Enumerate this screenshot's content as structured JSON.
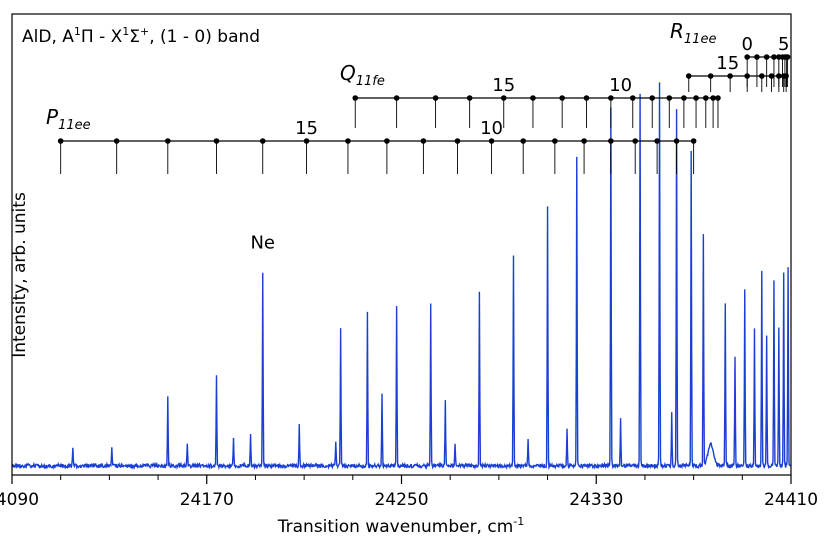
{
  "chart_data": {
    "type": "line",
    "title_parts": {
      "molecule": "AlD, A",
      "sup1": "1",
      "upper": "Π - X",
      "sup2": "1",
      "lower": "Σ",
      "sup3": "+",
      "band": ", (1 - 0) band"
    },
    "xlabel": "Transition wavenumber, cm",
    "xlabel_sup": "-1",
    "ylabel": "Intensity, arb. units",
    "xlim": [
      24090,
      24410
    ],
    "ylim": [
      0,
      1
    ],
    "x_ticks": [
      24090,
      24170,
      24250,
      24330,
      24410
    ],
    "x_tick_labels": [
      "24090",
      "24170",
      "24250",
      "24330",
      "24410"
    ],
    "x_minor_step": 20,
    "grid": false,
    "series": [
      {
        "color": "#1a3fd1",
        "baseline": 0.02,
        "peaks": [
          {
            "x": 24115,
            "h": 0.04
          },
          {
            "x": 24131,
            "h": 0.04
          },
          {
            "x": 24154,
            "h": 0.15
          },
          {
            "x": 24174,
            "h": 0.2
          },
          {
            "x": 24181,
            "h": 0.06
          },
          {
            "x": 24193,
            "h": 0.42
          },
          {
            "x": 24208,
            "h": 0.09
          },
          {
            "x": 24225,
            "h": 0.3
          },
          {
            "x": 24236,
            "h": 0.33
          },
          {
            "x": 24242,
            "h": 0.16
          },
          {
            "x": 24248,
            "h": 0.35
          },
          {
            "x": 24262,
            "h": 0.35
          },
          {
            "x": 24268,
            "h": 0.14
          },
          {
            "x": 24282,
            "h": 0.38
          },
          {
            "x": 24296,
            "h": 0.46
          },
          {
            "x": 24310,
            "h": 0.56
          },
          {
            "x": 24322,
            "h": 0.67
          },
          {
            "x": 24336,
            "h": 0.78
          },
          {
            "x": 24348,
            "h": 0.81
          },
          {
            "x": 24356,
            "h": 0.83
          },
          {
            "x": 24363,
            "h": 0.77
          },
          {
            "x": 24369,
            "h": 0.68
          },
          {
            "x": 24374,
            "h": 0.5
          },
          {
            "x": 24383,
            "h": 0.35
          },
          {
            "x": 24391,
            "h": 0.38
          },
          {
            "x": 24398,
            "h": 0.42
          },
          {
            "x": 24403,
            "h": 0.4
          },
          {
            "x": 24407,
            "h": 0.42
          },
          {
            "x": 24408.8,
            "h": 0.43
          },
          {
            "x": 24162,
            "h": 0.05
          },
          {
            "x": 24188,
            "h": 0.07
          },
          {
            "x": 24223,
            "h": 0.05
          },
          {
            "x": 24272,
            "h": 0.05
          },
          {
            "x": 24302,
            "h": 0.06
          },
          {
            "x": 24318,
            "h": 0.08
          },
          {
            "x": 24340,
            "h": 0.1
          },
          {
            "x": 24361,
            "h": 0.12
          },
          {
            "x": 24387,
            "h": 0.24
          },
          {
            "x": 24395,
            "h": 0.3
          },
          {
            "x": 24400,
            "h": 0.28
          },
          {
            "x": 24405,
            "h": 0.3
          }
        ],
        "broad_bump": {
          "x": 24377,
          "h": 0.05,
          "width": 1.5
        }
      }
    ],
    "annotations": [
      {
        "text": "Ne",
        "x": 24193,
        "y": 0.47
      }
    ],
    "branches": [
      {
        "name_letter": "P",
        "name_sub": "11ee",
        "level": 0,
        "lines": [
          24110,
          24133,
          24154,
          24174,
          24193,
          24211,
          24228,
          24244,
          24259,
          24273,
          24287,
          24300,
          24313,
          24325,
          24336,
          24346,
          24355,
          24363,
          24370
        ],
        "labels": [
          {
            "text": "15",
            "x": 24211
          },
          {
            "text": "10",
            "x": 24287
          }
        ]
      },
      {
        "name_letter": "Q",
        "name_sub": "11fe",
        "level": 1,
        "lines": [
          24231,
          24248,
          24264,
          24278,
          24292,
          24304,
          24316,
          24326,
          24336,
          24345,
          24353,
          24360,
          24366,
          24371,
          24375,
          24378,
          24380
        ],
        "labels": [
          {
            "text": "15",
            "x": 24292
          },
          {
            "text": "10",
            "x": 24340
          }
        ]
      },
      {
        "name_letter": "R",
        "name_sub": "11ee",
        "level": 2,
        "lines": [
          24368,
          24377,
          24385,
          24392,
          24398,
          24402,
          24405,
          24407,
          24408
        ],
        "labels": [
          {
            "text": "15",
            "x": 24384
          }
        ]
      },
      {
        "name_letter": "",
        "name_sub": "",
        "level": 3,
        "lines": [
          24392,
          24396,
          24400,
          24403,
          24405,
          24406.5,
          24407.5,
          24408.2,
          24408.6
        ],
        "labels": [
          {
            "text": "0",
            "x": 24392
          },
          {
            "text": "5",
            "x": 24407
          }
        ]
      }
    ]
  }
}
